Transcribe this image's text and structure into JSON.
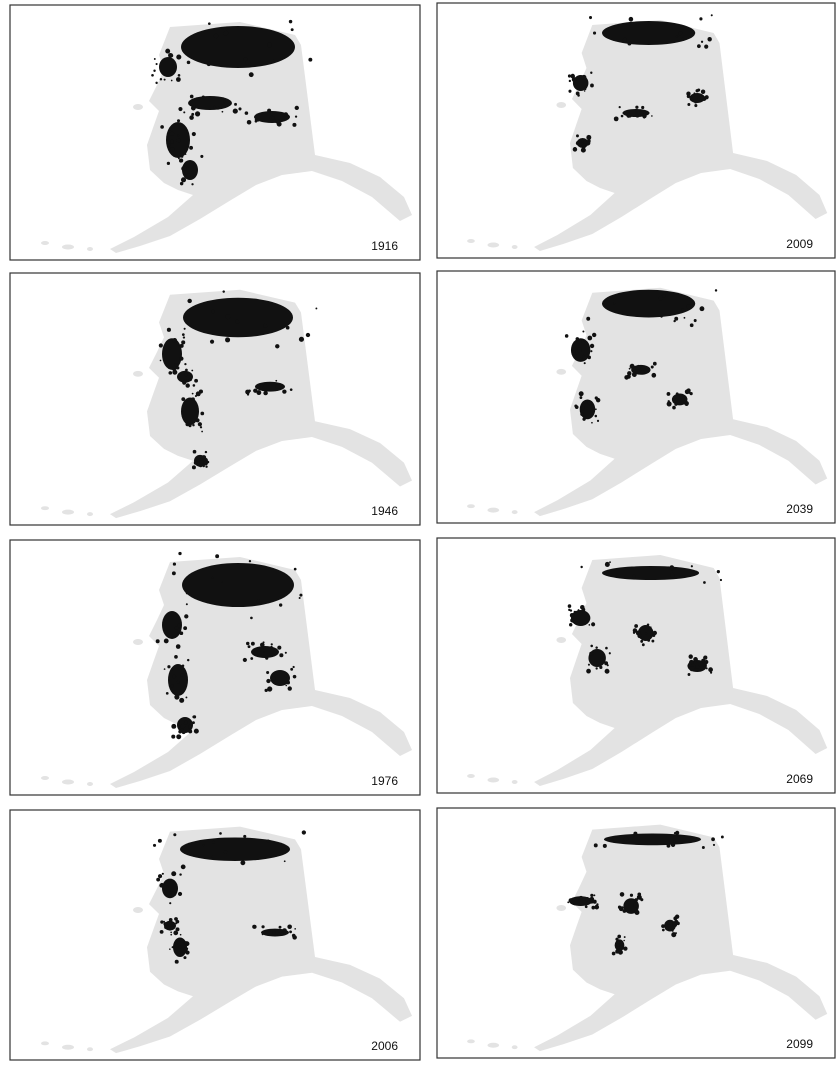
{
  "panels": [
    {
      "label": "1916"
    },
    {
      "label": "1946"
    },
    {
      "label": "1976"
    },
    {
      "label": "2006"
    },
    {
      "label": "2009"
    },
    {
      "label": "2039"
    },
    {
      "label": "2069"
    },
    {
      "label": "2099"
    }
  ]
}
